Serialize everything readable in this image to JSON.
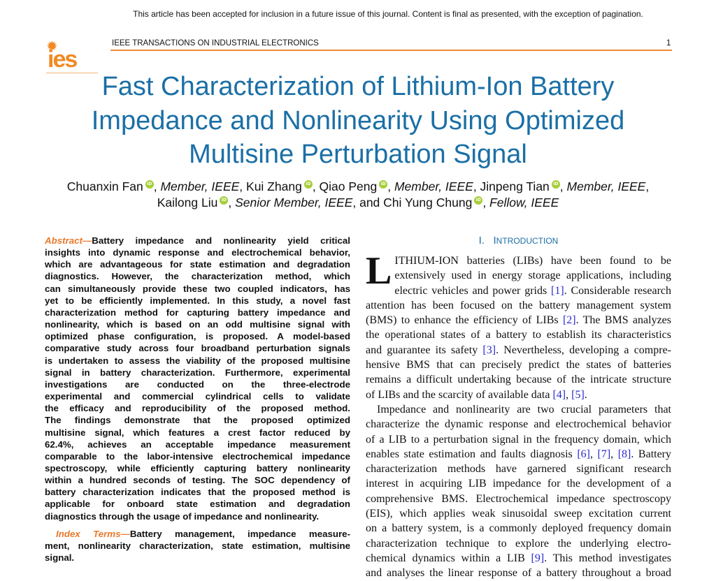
{
  "notice": "This article has been accepted for inclusion in a future issue of this journal. Content is final as presented, with the exception of pagination.",
  "header": {
    "logo_text": "ies",
    "journal": "IEEE TRANSACTIONS ON INDUSTRIAL ELECTRONICS",
    "page": "1",
    "accent": "#ef8a35"
  },
  "title": {
    "lines": [
      "Fast Characterization of Lithium-Ion Battery",
      "Impedance and Nonlinearity Using Optimized",
      "Multisine Perturbation Signal"
    ],
    "color": "#1b6fa6"
  },
  "authors": [
    {
      "name": "Chuanxin Fan",
      "role": "Member, IEEE"
    },
    {
      "name": "Kui Zhang",
      "role": ""
    },
    {
      "name": "Qiao Peng",
      "role": "Member, IEEE"
    },
    {
      "name": "Jinpeng Tian",
      "role": "Member, IEEE"
    },
    {
      "name": "Kailong Liu",
      "role": "Senior Member, IEEE"
    },
    {
      "name": "Chi Yung Chung",
      "role": "Fellow, IEEE"
    }
  ],
  "orcid_icon": "orcid-icon",
  "orcid_label": "iD",
  "author_and": "and",
  "abstract": {
    "label": "Abstract—",
    "lines": [
      "Battery impedance and nonlinearity yield critical",
      "insights into dynamic response and electrochemical behavior,",
      "which are advantageous for state estimation and degradation",
      "diagnostics. However, the characterization method, which",
      "can simultaneously provide these two coupled indicators, has",
      "yet to be efficiently implemented. In this study, a novel fast",
      "characterization method for capturing battery impedance and",
      "nonlinearity, which is based on an odd multisine signal with",
      "optimized phase configuration, is proposed. A model-based",
      "comparative study across four broadband perturbation signals",
      "is undertaken to assess the viability of the proposed multisine",
      "signal in battery characterization. Furthermore, experimental",
      "investigations are conducted on the three-electrode",
      "experimental and commercial cylindrical cells to validate",
      "the efficacy and reproducibility of the proposed method.",
      "The findings demonstrate that the proposed optimized",
      "multisine signal, which features a crest factor reduced by",
      "62.4%, achieves an acceptable impedance measurement",
      "comparable to the labor-intensive electrochemical impedance",
      "spectroscopy, while efficiently capturing battery nonlinearity",
      "within a hundred seconds of testing. The SOC dependency of",
      "battery characterization indicates that the proposed method is",
      "applicable for onboard state estimation and degradation",
      "diagnostics through the usage of impedance and nonlinearity."
    ]
  },
  "index_terms": {
    "label": "Index Terms—",
    "lines": [
      "Battery management, impedance measure-",
      "ment, nonlinearity characterization, state estimation, multisine",
      "signal."
    ]
  },
  "section": {
    "number": "I.",
    "first_letter": "I",
    "rest": "NTRODUCTION"
  },
  "intro": {
    "drop_cap": "L",
    "para1": [
      "ITHIUM-ION batteries (LIBs) have been found to be",
      "extensively used in energy storage applications, including",
      "electric vehicles and power grids [1]. Considerable research",
      "attention has been focused on the battery management system",
      "(BMS) to enhance the efficiency of LIBs [2]. The BMS analyzes",
      "the operational states of a battery to establish its characteristics",
      "and guarantee its safety [3]. Nevertheless, developing a compre-",
      "hensive BMS that can precisely predict the states of batteries",
      "remains a difficult undertaking because of the intricate structure",
      "of LIBs and the scarcity of available data [4], [5]."
    ],
    "para2": [
      "Impedance and nonlinearity are two crucial parameters that",
      "characterize the dynamic response and electrochemical behavior",
      "of a LIB to a perturbation signal in the frequency domain, which",
      "enables state estimation and faults diagnosis [6], [7], [8]. Battery",
      "characterization methods have garnered significant research",
      "interest in acquiring LIB impedance for the development of a",
      "comprehensive BMS. Electrochemical impedance spectroscopy",
      "(EIS), which applies weak sinusoidal sweep excitation current",
      "on a battery system, is a commonly deployed frequency domain",
      "characterization technique to explore the underlying electro-",
      "chemical dynamics within a LIB [9]. This method investigates",
      "and analyses the linear response of a battery throughout a broad"
    ],
    "cite_color": "#2a2ad0"
  }
}
